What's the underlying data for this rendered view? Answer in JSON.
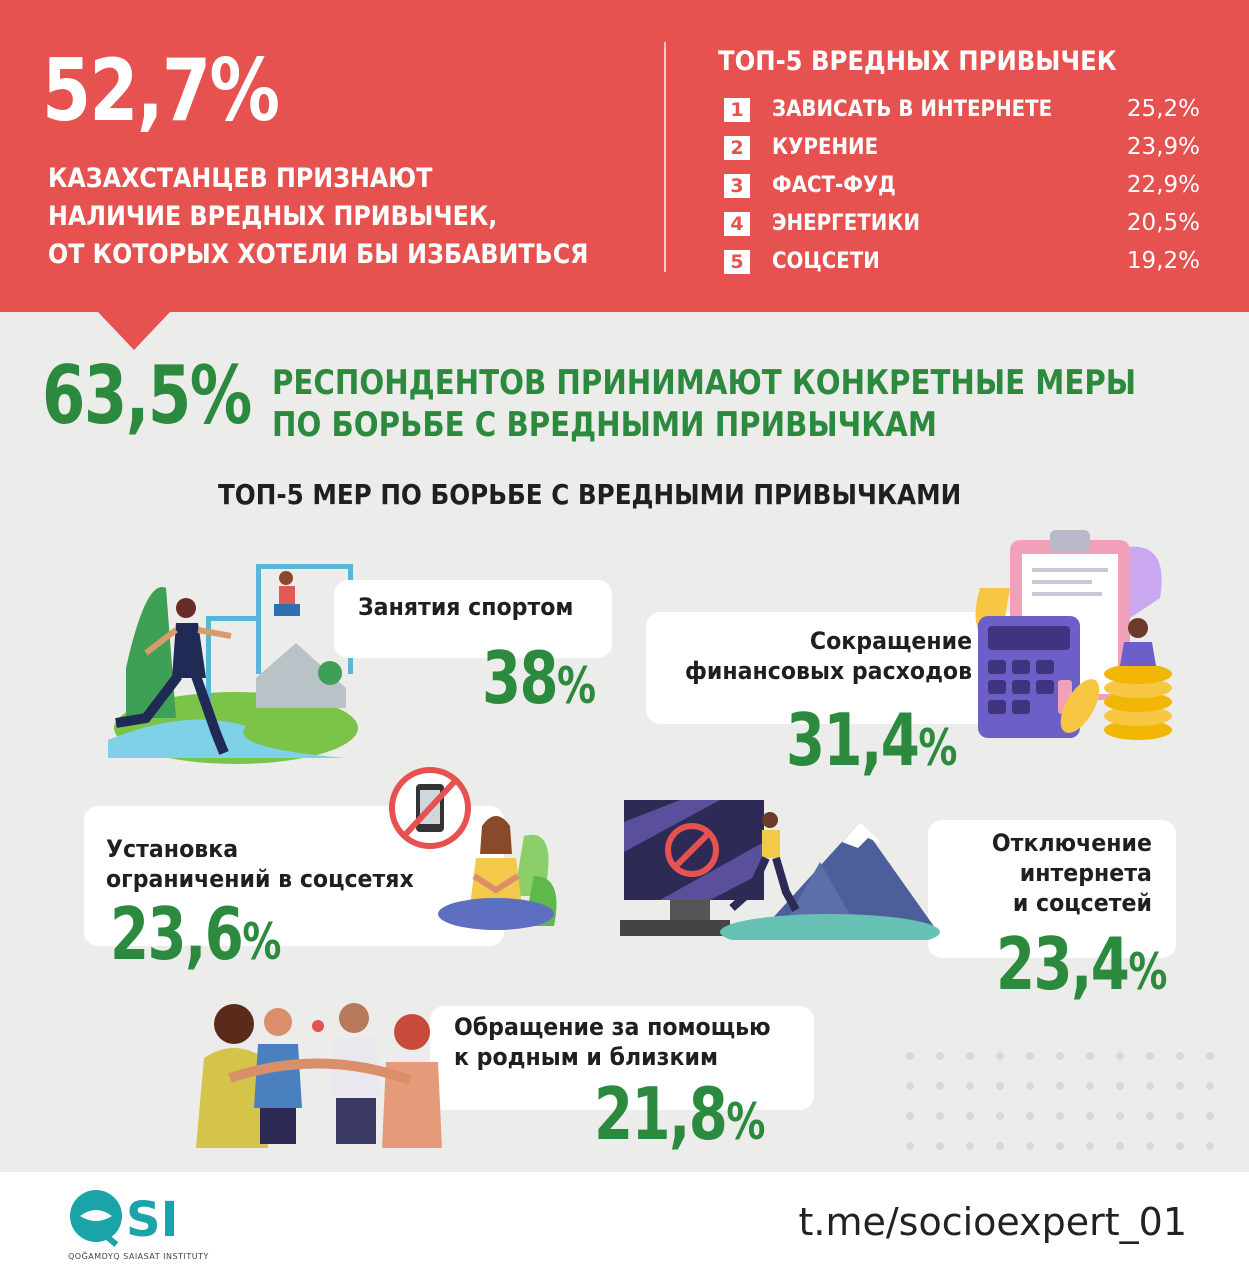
{
  "top": {
    "big_percent": "52,7%",
    "subtitle_lines": [
      "КАЗАХСТАНЦЕВ ПРИЗНАЮТ",
      "НАЛИЧИЕ ВРЕДНЫХ ПРИВЫЧЕК,",
      "ОТ КОТОРЫХ ХОТЕЛИ БЫ ИЗБАВИТЬСЯ"
    ],
    "top5_title": "ТОП-5 ВРЕДНЫХ ПРИВЫЧЕК",
    "habits": [
      {
        "num": "1",
        "label": "ЗАВИСАТЬ В ИНТЕРНЕТЕ",
        "pct": "25,2%"
      },
      {
        "num": "2",
        "label": "КУРЕНИЕ",
        "pct": "23,9%"
      },
      {
        "num": "3",
        "label": "ФАСТ-ФУД",
        "pct": "22,9%"
      },
      {
        "num": "4",
        "label": "ЭНЕРГЕТИКИ",
        "pct": "20,5%"
      },
      {
        "num": "5",
        "label": "СОЦСЕТИ",
        "pct": "19,2%"
      }
    ]
  },
  "headline": {
    "big_percent": "63,5%",
    "lines": [
      "РЕСПОНДЕНТОВ ПРИНИМАЮТ КОНКРЕТНЫЕ МЕРЫ",
      "ПО БОРЬБЕ С ВРЕДНЫМИ ПРИВЫЧКАМ"
    ]
  },
  "measures_title": "ТОП-5 МЕР ПО БОРЬБЕ С ВРЕДНЫМИ ПРИВЫЧКАМИ",
  "measures": [
    {
      "lines": [
        "Занятия спортом"
      ],
      "value": "38",
      "unit": "%",
      "icon": "runner-illustration"
    },
    {
      "lines": [
        "Сокращение",
        "финансовых расходов"
      ],
      "value": "31,4",
      "unit": "%",
      "icon": "calculator-illustration"
    },
    {
      "lines": [
        "Установка",
        "ограничений в соцсетях"
      ],
      "value": "23,6",
      "unit": "%",
      "icon": "no-phone-meditation-illustration"
    },
    {
      "lines": [
        "Отключение",
        "интернета",
        "и соцсетей"
      ],
      "value": "23,4",
      "unit": "%",
      "icon": "hiker-mountains-illustration"
    },
    {
      "lines": [
        "Обращение за помощью",
        "к родным и близким"
      ],
      "value": "21,8",
      "unit": "%",
      "icon": "friends-group-illustration"
    }
  ],
  "footer": {
    "logo_text": "QSI",
    "logo_sub": "QOĞAMDYQ SAIASAT INSTITUTY",
    "link": "t.me/socioexpert_01"
  },
  "colors": {
    "red": "#e5524f",
    "green": "#2b8a3e",
    "background": "#ececea"
  }
}
